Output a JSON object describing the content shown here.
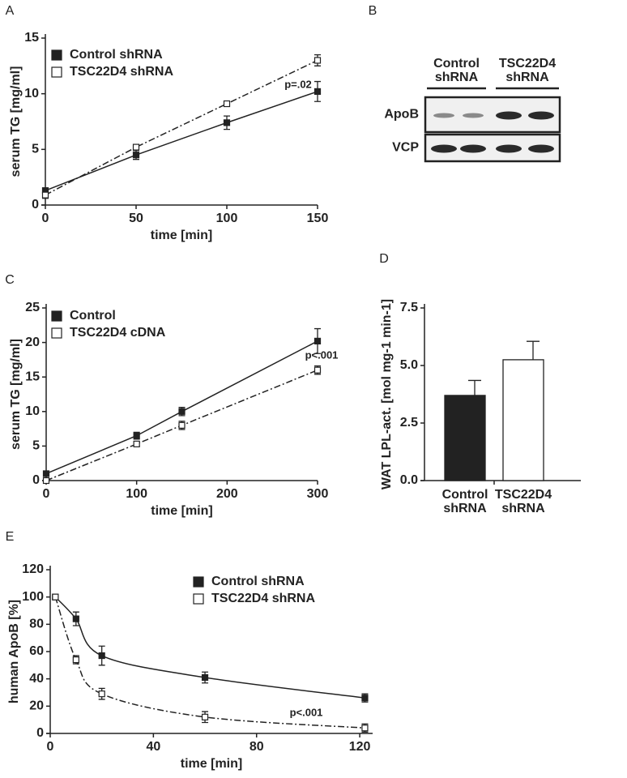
{
  "chart_data": [
    {
      "type": "line",
      "panel": "A",
      "x": [
        0,
        50,
        100,
        150
      ],
      "xlim": [
        0,
        150
      ],
      "ylim": [
        0,
        15
      ],
      "xticks": [
        0,
        50,
        100,
        150
      ],
      "yticks": [
        0,
        5,
        10,
        15
      ],
      "xlabel": "time [min]",
      "ylabel": "serum TG [mg/ml]",
      "annotation": "p=.02",
      "series": [
        {
          "name": "Control shRNA",
          "color": "#222222",
          "marker_fill": "#222222",
          "line_style": "solid",
          "values": [
            1.3,
            4.5,
            7.4,
            10.2
          ],
          "errors": [
            0.2,
            0.4,
            0.6,
            0.9
          ]
        },
        {
          "name": "TSC22D4 shRNA",
          "color": "#222222",
          "marker_fill": "#ffffff",
          "line_style": "dashdot",
          "values": [
            0.9,
            5.2,
            9.1,
            13.0
          ],
          "errors": [
            0.3,
            0.2,
            0.2,
            0.5
          ]
        }
      ]
    },
    {
      "type": "blot",
      "panel": "B",
      "columns": [
        "Control shRNA",
        "TSC22D4 shRNA"
      ],
      "rows": [
        "ApoB",
        "VCP"
      ]
    },
    {
      "type": "line",
      "panel": "C",
      "x": [
        0,
        100,
        150,
        300
      ],
      "xlim": [
        0,
        300
      ],
      "ylim": [
        0,
        25
      ],
      "xticks": [
        0,
        100,
        200,
        300
      ],
      "yticks": [
        0,
        5,
        10,
        15,
        20,
        25
      ],
      "xlabel": "time [min]",
      "ylabel": "serum TG [mg/ml]",
      "annotation": "p<.001",
      "series": [
        {
          "name": "Control",
          "color": "#222222",
          "marker_fill": "#222222",
          "line_style": "solid",
          "values": [
            1.0,
            6.5,
            10.0,
            20.2
          ],
          "errors": [
            0.2,
            0.5,
            0.6,
            1.8
          ]
        },
        {
          "name": "TSC22D4 cDNA",
          "color": "#222222",
          "marker_fill": "#ffffff",
          "line_style": "dashdot",
          "values": [
            0,
            5.3,
            8.0,
            16.0
          ],
          "errors": [
            0.1,
            0.3,
            0.6,
            0.6
          ]
        }
      ]
    },
    {
      "type": "bar",
      "panel": "D",
      "categories": [
        "Control shRNA",
        "TSC22D4 shRNA"
      ],
      "values": [
        3.7,
        5.25
      ],
      "errors": [
        0.65,
        0.8
      ],
      "colors": [
        "#222222",
        "#ffffff"
      ],
      "ylim": [
        0,
        7.5
      ],
      "yticks": [
        {
          "value": 0,
          "label": "0.0"
        },
        2.5,
        {
          "value": 5,
          "label": "5.0"
        },
        7.5
      ],
      "ylabel": "WAT LPL-act. [mol mg-1 min-1]"
    },
    {
      "type": "line",
      "panel": "E",
      "x": [
        2,
        10,
        20,
        60,
        122
      ],
      "xlim": [
        0,
        125
      ],
      "ylim": [
        0,
        120
      ],
      "xticks": [
        0,
        40,
        80,
        120
      ],
      "yticks": [
        0,
        20,
        40,
        60,
        80,
        100,
        120
      ],
      "smooth": true,
      "xlabel": "time [min]",
      "ylabel": "human ApoB [%]",
      "annotation": "p<.001",
      "series": [
        {
          "name": "Control shRNA",
          "color": "#222222",
          "marker_fill": "#222222",
          "line_style": "solid",
          "values": [
            100,
            84,
            57,
            41,
            26
          ],
          "errors": [
            1,
            5,
            7,
            4,
            3
          ]
        },
        {
          "name": "TSC22D4 shRNA",
          "color": "#222222",
          "marker_fill": "#ffffff",
          "line_style": "dashdot",
          "values": [
            100,
            54,
            29,
            12,
            4
          ],
          "errors": [
            1,
            3,
            4,
            4,
            3
          ]
        }
      ]
    }
  ]
}
